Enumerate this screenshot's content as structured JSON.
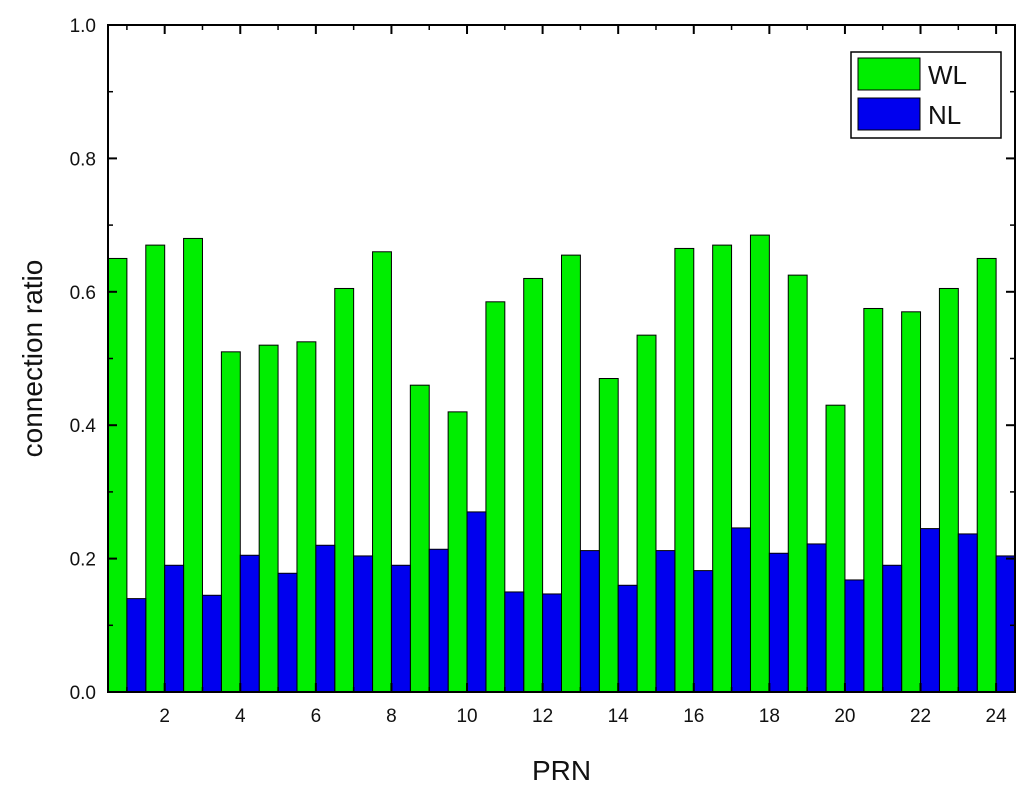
{
  "chart_data": {
    "type": "bar",
    "xlabel": "PRN",
    "ylabel": "connection ratio",
    "xlim": [
      0.5,
      24.5
    ],
    "ylim": [
      0.0,
      1.0
    ],
    "yticks": [
      "0.0",
      "0.2",
      "0.4",
      "0.6",
      "0.8",
      "1.0"
    ],
    "xticks": [
      "2",
      "4",
      "6",
      "8",
      "10",
      "12",
      "14",
      "16",
      "18",
      "20",
      "22",
      "24"
    ],
    "xtick_values": [
      2,
      4,
      6,
      8,
      10,
      12,
      14,
      16,
      18,
      20,
      22,
      24
    ],
    "ytick_values": [
      0.0,
      0.2,
      0.4,
      0.6,
      0.8,
      1.0
    ],
    "categories": [
      1,
      2,
      3,
      4,
      5,
      6,
      7,
      8,
      9,
      10,
      11,
      12,
      13,
      14,
      15,
      16,
      17,
      18,
      19,
      20,
      21,
      22,
      23,
      24
    ],
    "legend_position": "top-right",
    "grid": false,
    "series": [
      {
        "name": "WL",
        "color": "#00ee00",
        "values": [
          0.65,
          0.67,
          0.68,
          0.51,
          0.52,
          0.525,
          0.605,
          0.66,
          0.46,
          0.42,
          0.585,
          0.62,
          0.655,
          0.47,
          0.535,
          0.665,
          0.67,
          0.685,
          0.625,
          0.43,
          0.575,
          0.57,
          0.605,
          0.65
        ]
      },
      {
        "name": "NL",
        "color": "#0000ee",
        "values": [
          0.14,
          0.19,
          0.145,
          0.205,
          0.178,
          0.22,
          0.204,
          0.19,
          0.214,
          0.27,
          0.15,
          0.147,
          0.212,
          0.16,
          0.212,
          0.182,
          0.246,
          0.208,
          0.222,
          0.168,
          0.19,
          0.245,
          0.237,
          0.204
        ]
      }
    ]
  }
}
